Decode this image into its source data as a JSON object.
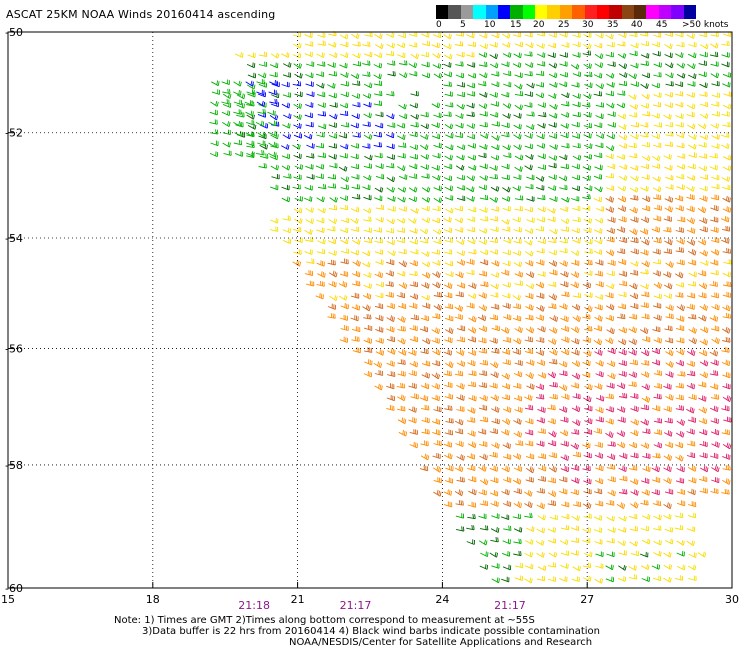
{
  "title": "ASCAT 25KM NOAA Winds 20160414 ascending",
  "colorbar": {
    "colors": [
      "#000000",
      "#555555",
      "#9a9a9a",
      "#00ffff",
      "#00a0ff",
      "#0000ff",
      "#00b000",
      "#00ff00",
      "#ffff00",
      "#ffd000",
      "#ffa000",
      "#ff6000",
      "#ff2020",
      "#ff0000",
      "#c00000",
      "#8b4513",
      "#5a2a0a",
      "#ff00ff",
      "#c000ff",
      "#8000ff",
      "#0000a0"
    ],
    "labels": [
      "0",
      "5",
      "10",
      "15",
      "20",
      "25",
      "30",
      "35",
      "40",
      "45",
      ">50 knots"
    ]
  },
  "map": {
    "lat_ticks": [
      "-50",
      "-52",
      "-54",
      "-56",
      "-58",
      "-60"
    ],
    "lon_ticks": [
      "15",
      "18",
      "21",
      "24",
      "27",
      "30"
    ],
    "lat_range": [
      -60,
      -50
    ],
    "lon_range": [
      15,
      30
    ],
    "times": [
      {
        "lon": 20.1,
        "label": "21:18"
      },
      {
        "lon": 22.2,
        "label": "21:17"
      },
      {
        "lon": 25.4,
        "label": "21:17"
      }
    ],
    "wind_colors": {
      "blue": "#0000ff",
      "green": "#00b000",
      "dark_green": "#006400",
      "yellow": "#ffd700",
      "light_yellow": "#f5e000",
      "orange": "#ff8c00",
      "dark_orange": "#d2691e",
      "red": "#e0206a"
    }
  },
  "notes": {
    "line1": "Note: 1) Times are GMT 2)Times along bottom correspond to measurement at ~55S",
    "line2": "3)Data buffer is 22 hrs from 20160414 4) Black wind barbs indicate possible contamination",
    "line3": "NOAA/NESDIS/Center for Satellite Applications and Research"
  }
}
